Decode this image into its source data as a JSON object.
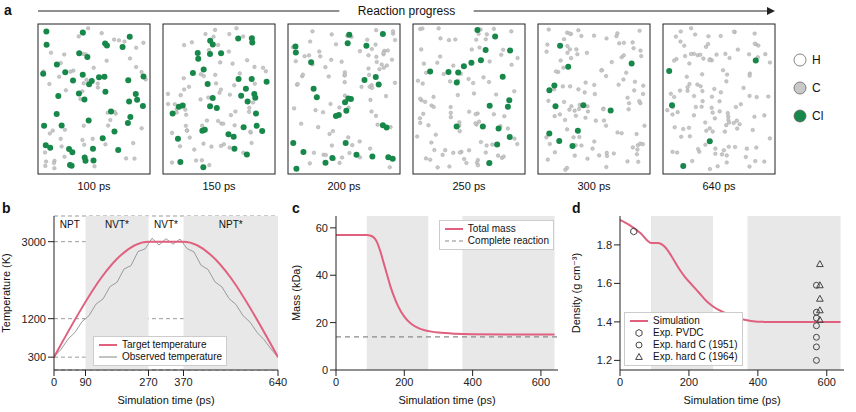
{
  "panel_a": {
    "panel_label": "a",
    "title": "Reaction progress",
    "snapshots": [
      "100 ps",
      "150 ps",
      "200 ps",
      "250 ps",
      "300 ps",
      "640 ps"
    ],
    "atoms": [
      {
        "label": "H",
        "color": "#ffffff"
      },
      {
        "label": "C",
        "color": "#c8c8c8"
      },
      {
        "label": "Cl",
        "color": "#17874a"
      }
    ]
  },
  "chart_data": [
    {
      "panel_label": "b",
      "type": "line",
      "xlabel": "Simulation time (ps)",
      "ylabel": "Temperature (K)",
      "xlim": [
        0,
        640
      ],
      "xticks": [
        0,
        90,
        270,
        370,
        640
      ],
      "ylim": [
        0,
        3600
      ],
      "yticks": [
        300,
        1200,
        3000
      ],
      "grid": true,
      "legend": "lower center",
      "shaded_ranges": [
        [
          90,
          270
        ],
        [
          370,
          640
        ]
      ],
      "phases": [
        {
          "label": "NPT",
          "start": 0,
          "end": 90
        },
        {
          "label": "NVT*",
          "start": 90,
          "end": 270
        },
        {
          "label": "NVT*",
          "start": 270,
          "end": 370
        },
        {
          "label": "NPT*",
          "start": 370,
          "end": 640
        }
      ],
      "series": [
        {
          "name": "Target temperature",
          "color": "#e0607e",
          "x": [
            0,
            270,
            370,
            640
          ],
          "values": [
            300,
            3000,
            3000,
            300
          ]
        },
        {
          "name": "Observed temperature",
          "color": "#9a9a9a",
          "x": [
            0,
            20,
            40,
            60,
            80,
            100,
            120,
            140,
            160,
            180,
            200,
            220,
            240,
            260,
            280,
            300,
            320,
            340,
            360,
            380,
            400,
            420,
            440,
            460,
            480,
            500,
            520,
            540,
            560,
            580,
            600,
            620,
            640
          ],
          "values": [
            310,
            480,
            720,
            880,
            1130,
            1270,
            1540,
            1660,
            1950,
            2050,
            2360,
            2440,
            2770,
            2830,
            3080,
            2920,
            3070,
            2940,
            3060,
            2840,
            2760,
            2450,
            2350,
            2060,
            1940,
            1670,
            1530,
            1270,
            1120,
            880,
            710,
            490,
            300
          ]
        }
      ]
    },
    {
      "panel_label": "c",
      "type": "line",
      "xlabel": "Simulation time (ps)",
      "ylabel": "Mass (kDa)",
      "xlim": [
        0,
        650
      ],
      "xticks": [
        0,
        200,
        400,
        600
      ],
      "ylim": [
        0,
        65
      ],
      "yticks": [
        0,
        20,
        40,
        60
      ],
      "grid": false,
      "legend": "upper right",
      "shaded_ranges": [
        [
          90,
          270
        ],
        [
          370,
          640
        ]
      ],
      "series": [
        {
          "name": "Total mass",
          "color": "#e0607e",
          "x": [
            0,
            90,
            100,
            110,
            120,
            130,
            140,
            150,
            160,
            170,
            180,
            200,
            220,
            240,
            260,
            280,
            300,
            350,
            400,
            500,
            640
          ],
          "values": [
            57,
            57,
            56.8,
            56,
            54,
            50,
            45,
            40,
            35,
            31,
            27.5,
            22.5,
            19.5,
            17.8,
            16.8,
            16.2,
            15.8,
            15.3,
            15.1,
            15,
            15
          ]
        }
      ],
      "reference_lines": [
        {
          "name": "Complete reaction",
          "y": 14,
          "color": "#8a8a8a",
          "line_style": "dashed"
        }
      ]
    },
    {
      "panel_label": "d",
      "type": "line",
      "xlabel": "Simulation time (ps)",
      "ylabel": "Density (g cm⁻³)",
      "xlim": [
        0,
        650
      ],
      "xticks": [
        0,
        200,
        400,
        600
      ],
      "ylim": [
        1.15,
        1.95
      ],
      "yticks": [
        1.2,
        1.4,
        1.6,
        1.8
      ],
      "grid": false,
      "legend": "lower left",
      "shaded_ranges": [
        [
          90,
          270
        ],
        [
          370,
          640
        ]
      ],
      "series": [
        {
          "name": "Simulation",
          "type": "line",
          "color": "#e0607e",
          "x": [
            0,
            30,
            60,
            90,
            110,
            130,
            150,
            170,
            190,
            210,
            230,
            250,
            270,
            300,
            340,
            380,
            420,
            640
          ],
          "values": [
            1.93,
            1.9,
            1.86,
            1.81,
            1.81,
            1.79,
            1.74,
            1.68,
            1.63,
            1.59,
            1.55,
            1.51,
            1.48,
            1.45,
            1.42,
            1.405,
            1.4,
            1.4
          ]
        },
        {
          "name": "Exp. PVDC",
          "type": "scatter",
          "marker": "hexagon",
          "color": "#444444",
          "x": [
            40
          ],
          "values": [
            1.87
          ]
        },
        {
          "name": "Exp. hard C (1951)",
          "type": "scatter",
          "marker": "circle",
          "color": "#444444",
          "x": [
            570,
            570,
            570,
            570,
            570,
            570,
            570
          ],
          "values": [
            1.2,
            1.27,
            1.32,
            1.38,
            1.42,
            1.45,
            1.59
          ]
        },
        {
          "name": "Exp. hard C (1964)",
          "type": "scatter",
          "marker": "triangle",
          "color": "#444444",
          "x": [
            580,
            580,
            580,
            580,
            580
          ],
          "values": [
            1.41,
            1.46,
            1.52,
            1.59,
            1.7
          ]
        }
      ]
    }
  ]
}
